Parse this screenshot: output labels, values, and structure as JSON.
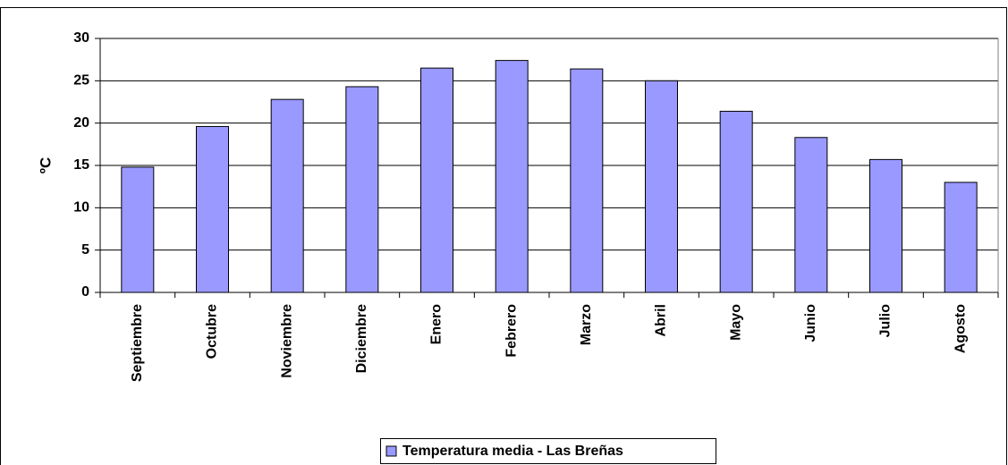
{
  "chart_data": {
    "type": "bar",
    "y_label": "ºC",
    "categories": [
      "Septiembre",
      "Octubre",
      "Noviembre",
      "Diciembre",
      "Enero",
      "Febrero",
      "Marzo",
      "Abril",
      "Mayo",
      "Junio",
      "Julio",
      "Agosto"
    ],
    "series": [
      {
        "name": "Temperatura media - Las Breñas",
        "color": "#9999ff",
        "values": [
          14.8,
          19.6,
          22.8,
          24.3,
          26.5,
          27.4,
          26.4,
          25.0,
          21.4,
          18.3,
          15.7,
          13.0
        ]
      }
    ],
    "ylim": [
      0,
      30
    ],
    "yticks": [
      0,
      5,
      10,
      15,
      20,
      25,
      30
    ],
    "grid": true,
    "legend": "bottom"
  }
}
